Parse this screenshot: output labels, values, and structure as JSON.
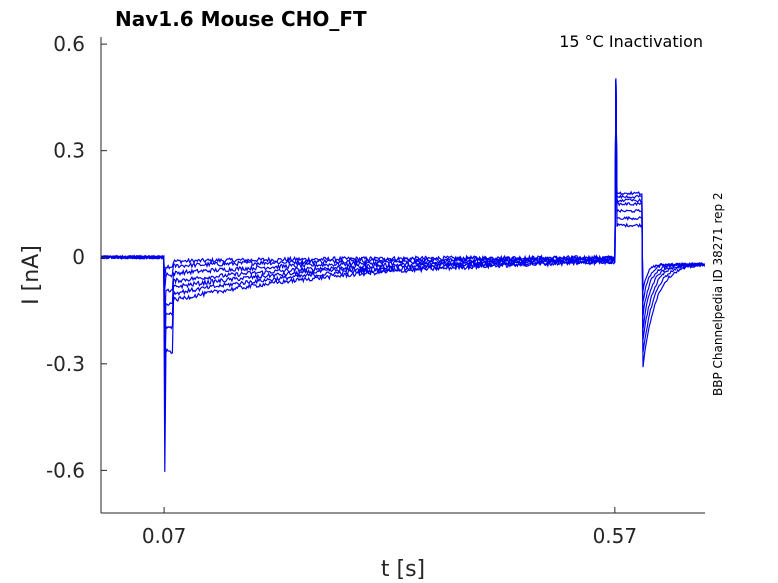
{
  "chart_data": {
    "type": "line",
    "title": "Nav1.6  Mouse  CHO_FT",
    "annotation": "15 °C  Inactivation",
    "side_label": "BBP Channelpedia ID 38271 rep 2",
    "xlabel": "t [s]",
    "ylabel": "I [nA]",
    "xlim": [
      0.0,
      0.67
    ],
    "ylim": [
      -0.72,
      0.62
    ],
    "x_ticks": [
      0.07,
      0.57
    ],
    "x_tick_labels": [
      "0.07",
      "0.57"
    ],
    "y_ticks": [
      0.6,
      0.3,
      0,
      -0.3,
      -0.6
    ],
    "y_tick_labels": [
      "0.6",
      "0.3",
      "0",
      "-0.3",
      "-0.6"
    ],
    "grid": false,
    "line_color": "#0000ee",
    "series": [
      {
        "peak": -0.05,
        "sustained": -0.012,
        "tail": 0.09
      },
      {
        "peak": -0.09,
        "sustained": -0.025,
        "tail": 0.11
      },
      {
        "peak": -0.17,
        "sustained": -0.045,
        "tail": 0.13
      },
      {
        "peak": -0.23,
        "sustained": -0.065,
        "tail": 0.15
      },
      {
        "peak": -0.29,
        "sustained": -0.08,
        "tail": 0.16
      },
      {
        "peak": -0.36,
        "sustained": -0.095,
        "tail": 0.17
      },
      {
        "peak": -0.61,
        "sustained": -0.11,
        "tail": 0.18
      }
    ]
  }
}
